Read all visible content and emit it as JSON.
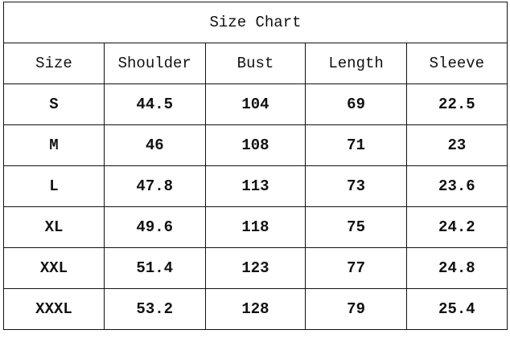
{
  "title": "Size Chart",
  "columns": [
    "Size",
    "Shoulder",
    "Bust",
    "Length",
    "Sleeve"
  ],
  "rows": [
    [
      "S",
      "44.5",
      "104",
      "69",
      "22.5"
    ],
    [
      "M",
      "46",
      "108",
      "71",
      "23"
    ],
    [
      "L",
      "47.8",
      "113",
      "73",
      "23.6"
    ],
    [
      "XL",
      "49.6",
      "118",
      "75",
      "24.2"
    ],
    [
      "XXL",
      "51.4",
      "123",
      "77",
      "24.8"
    ],
    [
      "XXXL",
      "53.2",
      "128",
      "79",
      "25.4"
    ]
  ]
}
